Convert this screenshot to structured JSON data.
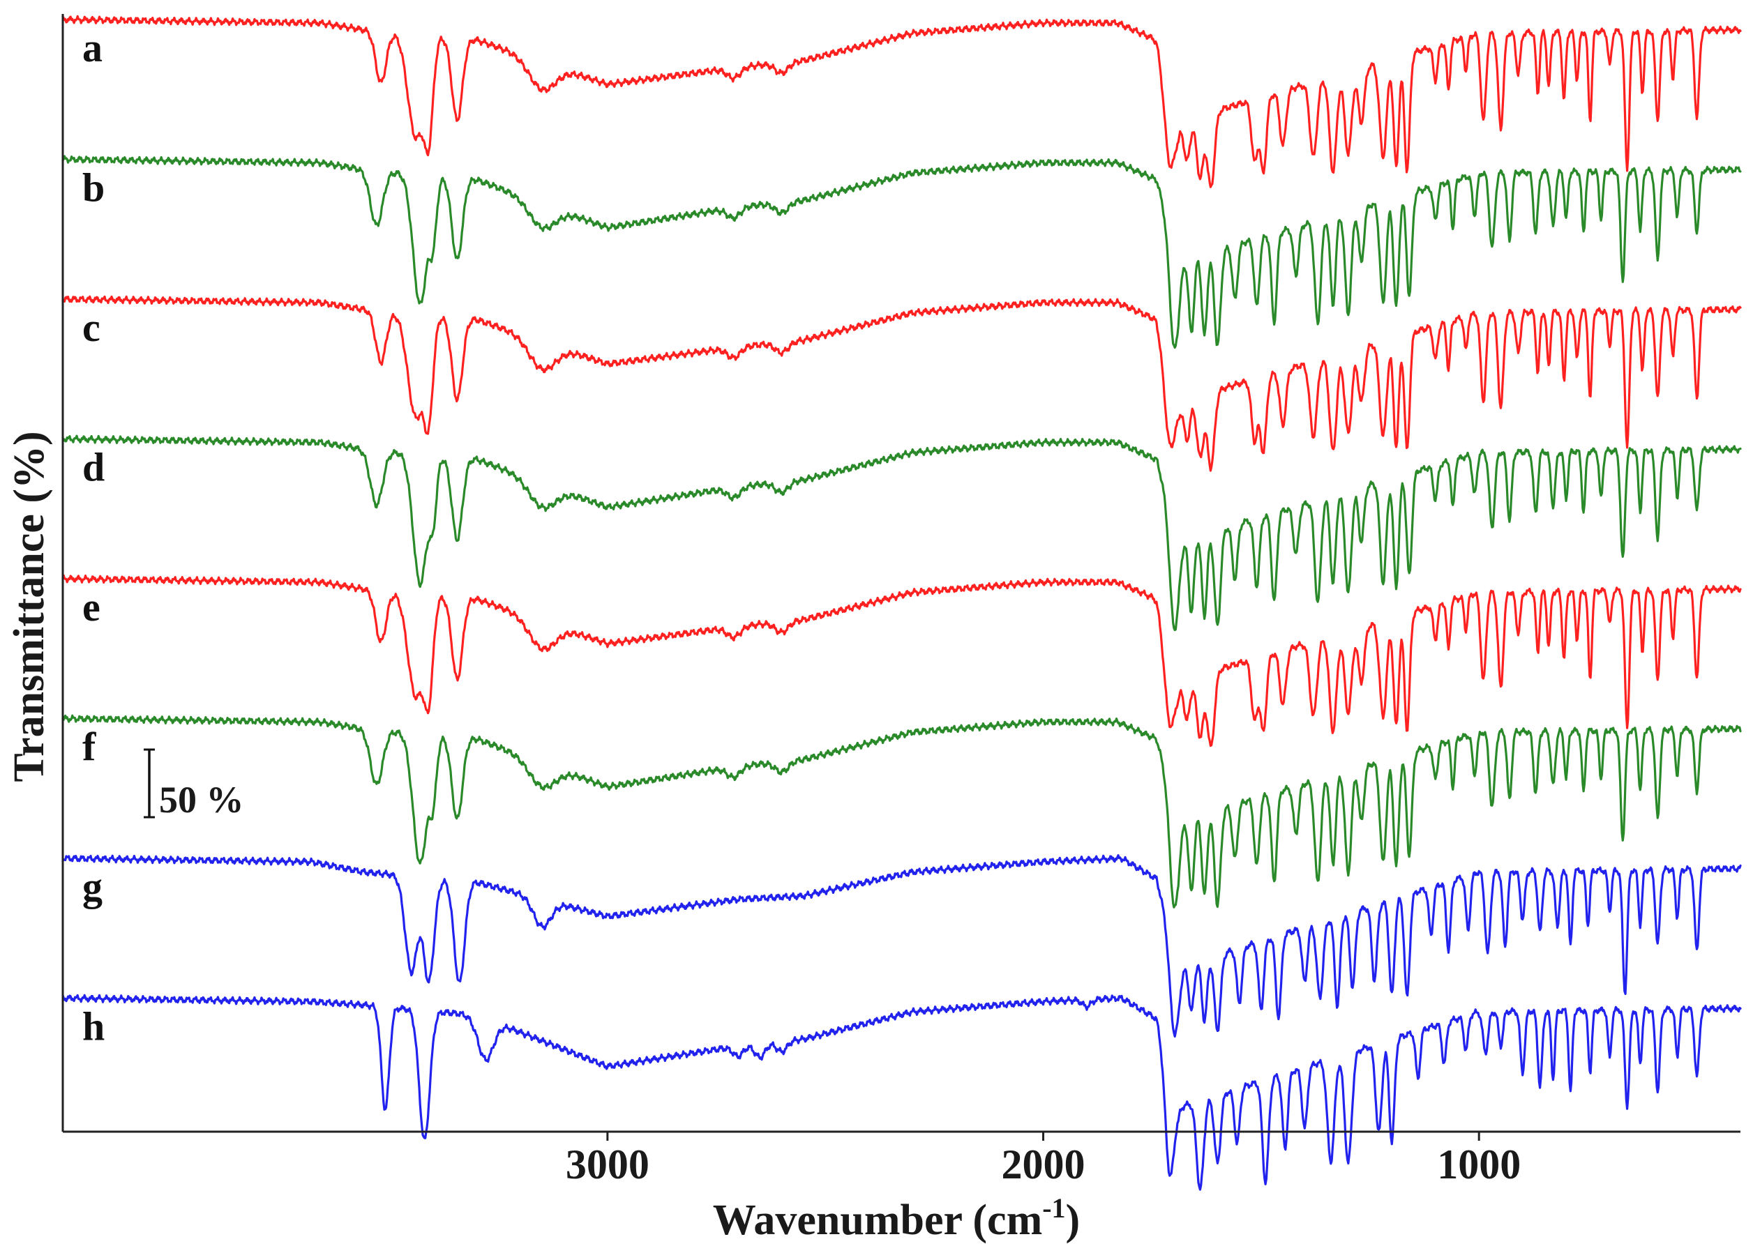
{
  "chart_data": {
    "type": "line",
    "title": "",
    "xlabel": "Wavenumber (cm",
    "xlabel_superscript": "-1",
    "xlabel_close": ")",
    "ylabel": "Transmittance (%)",
    "xlim": [
      4250,
      400
    ],
    "x_reversed": true,
    "xticks": [
      3000,
      2000,
      1000
    ],
    "xtick_labels": [
      "3000",
      "2000",
      "1000"
    ],
    "yticks": [],
    "grid": false,
    "scale_bar": {
      "label": "50 %",
      "value_percent": 50
    },
    "series": [
      {
        "name": "a",
        "color": "#ff2020",
        "profile": "form1",
        "offset_rank": 0
      },
      {
        "name": "b",
        "color": "#2a8a2a",
        "profile": "form2",
        "offset_rank": 1
      },
      {
        "name": "c",
        "color": "#ff2020",
        "profile": "form1",
        "offset_rank": 2
      },
      {
        "name": "d",
        "color": "#2a8a2a",
        "profile": "form2",
        "offset_rank": 3
      },
      {
        "name": "e",
        "color": "#ff2020",
        "profile": "form1",
        "offset_rank": 4
      },
      {
        "name": "f",
        "color": "#2a8a2a",
        "profile": "form2",
        "offset_rank": 5
      },
      {
        "name": "g",
        "color": "#2222ee",
        "profile": "form3",
        "offset_rank": 6
      },
      {
        "name": "h",
        "color": "#2222ee",
        "profile": "form4",
        "offset_rank": 7
      }
    ],
    "profiles": {
      "form1": {
        "baseline": [
          [
            4250,
            0
          ],
          [
            3660,
            -1
          ],
          [
            3560,
            -3
          ],
          [
            3300,
            -6
          ],
          [
            3000,
            -19
          ],
          [
            2700,
            -14
          ],
          [
            2550,
            -12
          ],
          [
            2300,
            -4
          ],
          [
            2000,
            -1
          ],
          [
            1830,
            -1
          ],
          [
            1740,
            -6
          ],
          [
            1690,
            -30
          ],
          [
            1000,
            -4
          ],
          [
            400,
            -3
          ]
        ],
        "peaks": [
          [
            3520,
            15,
            12
          ],
          [
            3440,
            30,
            18
          ],
          [
            3410,
            26,
            10
          ],
          [
            3345,
            24,
            12
          ],
          [
            3150,
            8,
            30
          ],
          [
            2710,
            3,
            15
          ],
          [
            2600,
            3,
            15
          ],
          [
            1710,
            22,
            12
          ],
          [
            1670,
            12,
            7
          ],
          [
            1640,
            18,
            8
          ],
          [
            1615,
            22,
            8
          ],
          [
            1515,
            18,
            7
          ],
          [
            1495,
            22,
            7
          ],
          [
            1450,
            16,
            7
          ],
          [
            1380,
            22,
            8
          ],
          [
            1335,
            28,
            8
          ],
          [
            1300,
            24,
            8
          ],
          [
            1270,
            16,
            7
          ],
          [
            1220,
            28,
            8
          ],
          [
            1190,
            32,
            6
          ],
          [
            1165,
            34,
            6
          ],
          [
            1100,
            10,
            5
          ],
          [
            1070,
            14,
            4
          ],
          [
            1030,
            10,
            4
          ],
          [
            990,
            26,
            6
          ],
          [
            950,
            28,
            6
          ],
          [
            910,
            12,
            5
          ],
          [
            865,
            18,
            4
          ],
          [
            840,
            16,
            4
          ],
          [
            805,
            20,
            4
          ],
          [
            775,
            14,
            4
          ],
          [
            745,
            26,
            4
          ],
          [
            700,
            10,
            4
          ],
          [
            660,
            40,
            5
          ],
          [
            625,
            18,
            4
          ],
          [
            590,
            26,
            5
          ],
          [
            555,
            14,
            4
          ],
          [
            500,
            26,
            5
          ]
        ]
      },
      "form2": {
        "baseline": [
          [
            4250,
            0
          ],
          [
            3660,
            -1
          ],
          [
            3560,
            -3
          ],
          [
            3300,
            -6
          ],
          [
            3000,
            -20
          ],
          [
            2700,
            -14
          ],
          [
            2550,
            -12
          ],
          [
            2300,
            -4
          ],
          [
            2000,
            -1
          ],
          [
            1830,
            -1
          ],
          [
            1740,
            -6
          ],
          [
            1690,
            -30
          ],
          [
            1000,
            -4
          ],
          [
            400,
            -3
          ]
        ],
        "peaks": [
          [
            3530,
            16,
            14
          ],
          [
            3430,
            38,
            16
          ],
          [
            3400,
            16,
            8
          ],
          [
            3345,
            24,
            12
          ],
          [
            3150,
            7,
            30
          ],
          [
            2710,
            3,
            15
          ],
          [
            2600,
            3,
            15
          ],
          [
            1700,
            30,
            10
          ],
          [
            1660,
            22,
            6
          ],
          [
            1630,
            24,
            6
          ],
          [
            1600,
            28,
            7
          ],
          [
            1560,
            16,
            6
          ],
          [
            1510,
            20,
            6
          ],
          [
            1470,
            26,
            6
          ],
          [
            1420,
            14,
            6
          ],
          [
            1370,
            30,
            7
          ],
          [
            1335,
            26,
            6
          ],
          [
            1300,
            30,
            7
          ],
          [
            1270,
            16,
            6
          ],
          [
            1220,
            30,
            7
          ],
          [
            1190,
            32,
            6
          ],
          [
            1160,
            30,
            6
          ],
          [
            1100,
            10,
            5
          ],
          [
            1060,
            14,
            4
          ],
          [
            1010,
            12,
            5
          ],
          [
            970,
            22,
            6
          ],
          [
            930,
            20,
            5
          ],
          [
            870,
            18,
            5
          ],
          [
            830,
            16,
            5
          ],
          [
            800,
            14,
            4
          ],
          [
            760,
            18,
            4
          ],
          [
            720,
            14,
            4
          ],
          [
            670,
            32,
            5
          ],
          [
            630,
            18,
            4
          ],
          [
            590,
            26,
            5
          ],
          [
            545,
            14,
            4
          ],
          [
            500,
            18,
            5
          ]
        ]
      },
      "form3": {
        "baseline": [
          [
            4250,
            0
          ],
          [
            3680,
            -1
          ],
          [
            3560,
            -4
          ],
          [
            3300,
            -7
          ],
          [
            3000,
            -17
          ],
          [
            2700,
            -12
          ],
          [
            2550,
            -11
          ],
          [
            2300,
            -4
          ],
          [
            2000,
            -1
          ],
          [
            1820,
            0
          ],
          [
            1740,
            -6
          ],
          [
            1690,
            -32
          ],
          [
            1000,
            -4
          ],
          [
            400,
            -3
          ]
        ],
        "peaks": [
          [
            3450,
            28,
            14
          ],
          [
            3410,
            30,
            12
          ],
          [
            3340,
            30,
            12
          ],
          [
            3150,
            8,
            20
          ],
          [
            1700,
            24,
            10
          ],
          [
            1660,
            14,
            6
          ],
          [
            1630,
            18,
            6
          ],
          [
            1600,
            22,
            7
          ],
          [
            1550,
            16,
            6
          ],
          [
            1500,
            20,
            6
          ],
          [
            1460,
            24,
            6
          ],
          [
            1400,
            16,
            6
          ],
          [
            1365,
            22,
            7
          ],
          [
            1325,
            26,
            6
          ],
          [
            1290,
            22,
            6
          ],
          [
            1240,
            22,
            6
          ],
          [
            1200,
            28,
            6
          ],
          [
            1165,
            30,
            6
          ],
          [
            1110,
            14,
            5
          ],
          [
            1070,
            20,
            5
          ],
          [
            1025,
            16,
            5
          ],
          [
            980,
            24,
            6
          ],
          [
            940,
            22,
            5
          ],
          [
            900,
            14,
            5
          ],
          [
            860,
            18,
            5
          ],
          [
            820,
            16,
            5
          ],
          [
            790,
            22,
            4
          ],
          [
            750,
            16,
            4
          ],
          [
            700,
            12,
            4
          ],
          [
            665,
            36,
            5
          ],
          [
            630,
            16,
            4
          ],
          [
            590,
            22,
            5
          ],
          [
            545,
            14,
            4
          ],
          [
            500,
            24,
            5
          ]
        ]
      },
      "form4": {
        "baseline": [
          [
            4250,
            0
          ],
          [
            3680,
            -1
          ],
          [
            3560,
            -2
          ],
          [
            3300,
            -5
          ],
          [
            3000,
            -20
          ],
          [
            2700,
            -14
          ],
          [
            2550,
            -12
          ],
          [
            2300,
            -4
          ],
          [
            2000,
            -1
          ],
          [
            1820,
            0
          ],
          [
            1740,
            -6
          ],
          [
            1690,
            -32
          ],
          [
            1000,
            -4
          ],
          [
            400,
            -3
          ]
        ],
        "peaks": [
          [
            3510,
            30,
            9
          ],
          [
            3420,
            38,
            12
          ],
          [
            3280,
            12,
            18
          ],
          [
            2700,
            3,
            12
          ],
          [
            2650,
            4,
            12
          ],
          [
            2600,
            3,
            12
          ],
          [
            1900,
            2,
            10
          ],
          [
            1710,
            30,
            10
          ],
          [
            1640,
            26,
            8
          ],
          [
            1600,
            20,
            7
          ],
          [
            1555,
            16,
            6
          ],
          [
            1490,
            30,
            7
          ],
          [
            1445,
            22,
            6
          ],
          [
            1400,
            18,
            6
          ],
          [
            1340,
            30,
            8
          ],
          [
            1300,
            32,
            8
          ],
          [
            1230,
            26,
            7
          ],
          [
            1200,
            30,
            6
          ],
          [
            1140,
            14,
            5
          ],
          [
            1080,
            12,
            5
          ],
          [
            1030,
            10,
            5
          ],
          [
            985,
            12,
            6
          ],
          [
            950,
            10,
            5
          ],
          [
            900,
            18,
            5
          ],
          [
            860,
            22,
            5
          ],
          [
            830,
            20,
            4
          ],
          [
            790,
            24,
            4
          ],
          [
            745,
            18,
            4
          ],
          [
            700,
            14,
            4
          ],
          [
            660,
            28,
            5
          ],
          [
            630,
            16,
            4
          ],
          [
            590,
            24,
            5
          ],
          [
            545,
            14,
            4
          ],
          [
            500,
            20,
            5
          ]
        ]
      }
    }
  }
}
